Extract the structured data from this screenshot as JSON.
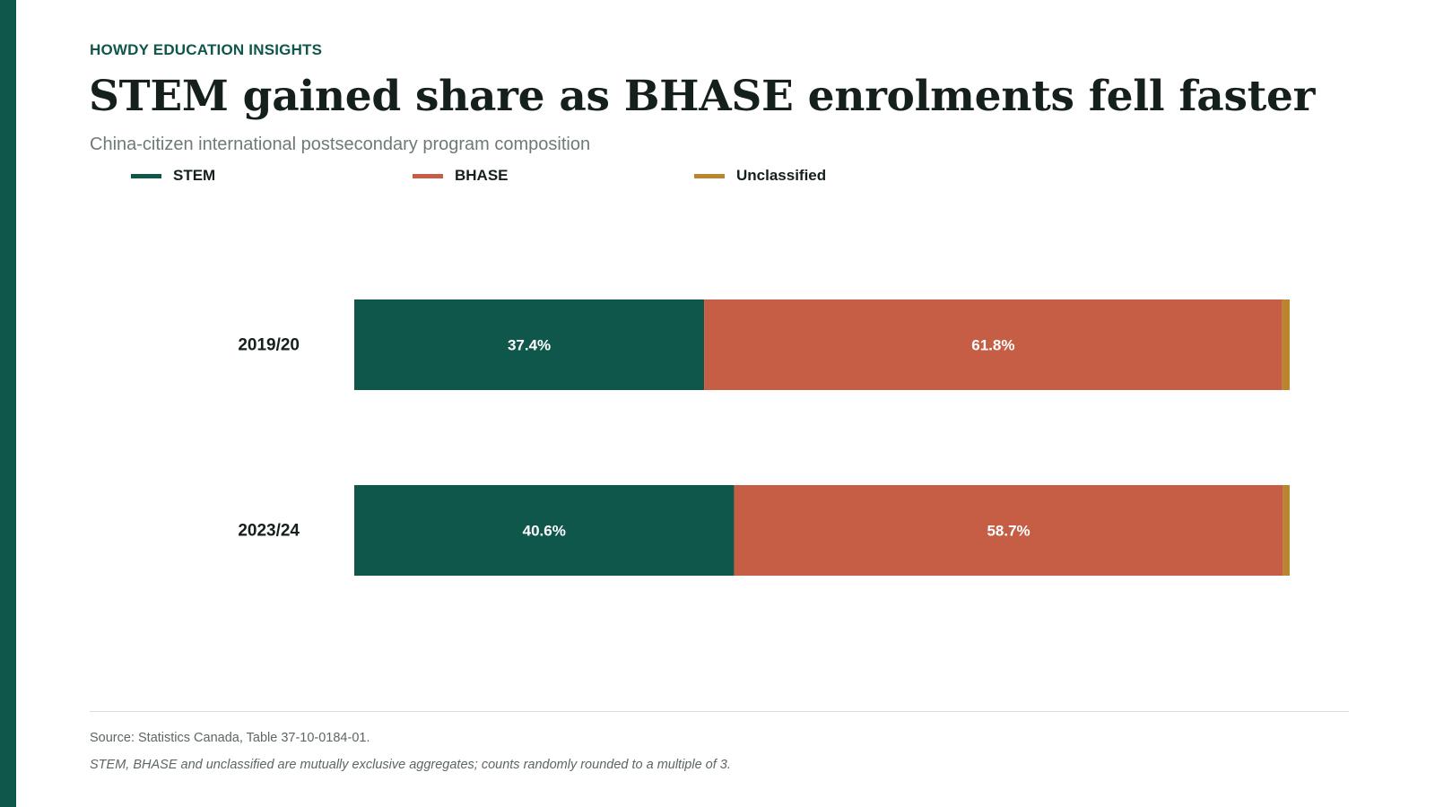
{
  "brand": "HOWDY EDUCATION INSIGHTS",
  "title": "STEM gained share as BHASE enrolments fell faster",
  "subtitle": "China-citizen international postsecondary program composition",
  "legend": [
    {
      "label": "STEM",
      "color": "#10574b"
    },
    {
      "label": "BHASE",
      "color": "#c55e44"
    },
    {
      "label": "Unclassified",
      "color": "#b9862e"
    }
  ],
  "footer": {
    "source": "Source: Statistics Canada, Table 37-10-0184-01.",
    "note": "STEM, BHASE and unclassified are mutually exclusive aggregates; counts randomly rounded to a multiple of 3."
  },
  "chart_data": {
    "type": "bar",
    "orientation": "horizontal",
    "stacked": true,
    "categories": [
      "2019/20",
      "2023/24"
    ],
    "series": [
      {
        "name": "STEM",
        "values": [
          37.4,
          40.6
        ],
        "labels": [
          "37.4%",
          "40.6%"
        ],
        "color": "#10574b"
      },
      {
        "name": "BHASE",
        "values": [
          61.8,
          58.7
        ],
        "labels": [
          "61.8%",
          "58.7%"
        ],
        "color": "#c55e44"
      },
      {
        "name": "Unclassified",
        "values": [
          0.8,
          0.7
        ],
        "labels": [
          "",
          ""
        ],
        "color": "#b9862e"
      }
    ],
    "xlim": [
      0,
      100
    ],
    "grid": false,
    "legend_position": "top-left"
  }
}
